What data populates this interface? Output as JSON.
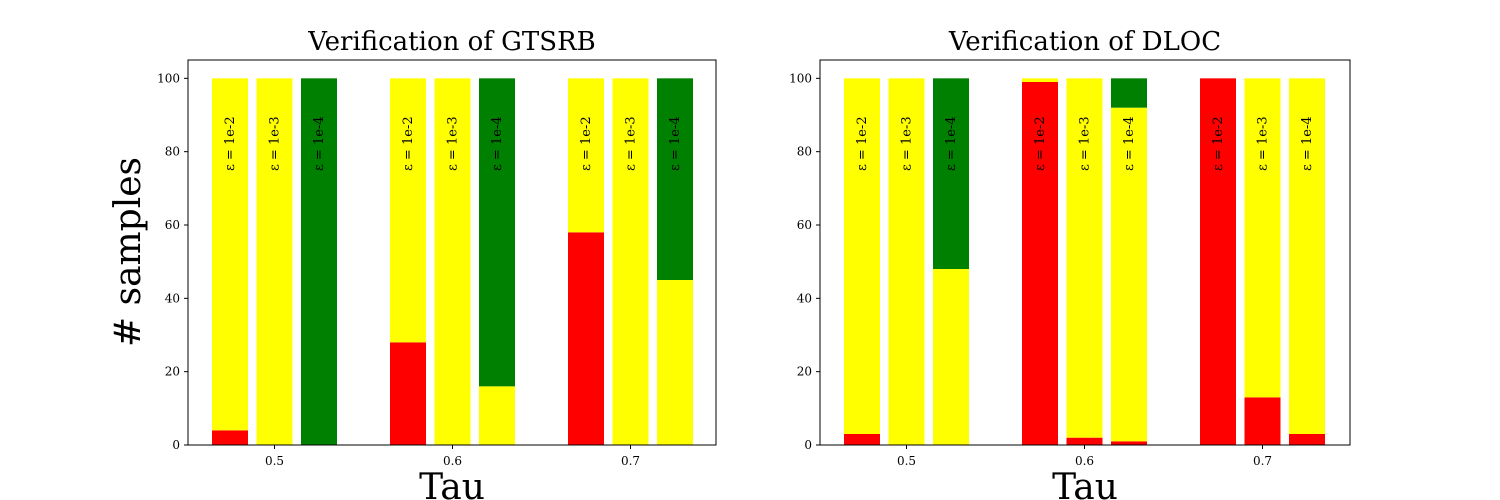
{
  "figure": {
    "ylabel": "# samples"
  },
  "chart_data": [
    {
      "type": "bar",
      "stacked": true,
      "title": "Verification of GTSRB",
      "xlabel": "Tau",
      "ylabel": "# samples",
      "ylim": [
        0,
        105
      ],
      "yticks": [
        0,
        20,
        40,
        60,
        80,
        100
      ],
      "groups": [
        "0.5",
        "0.6",
        "0.7"
      ],
      "bar_labels": [
        "ε = 1e-2",
        "ε = 1e-3",
        "ε = 1e-4"
      ],
      "series_colors": {
        "red": "#ff0000",
        "yellow": "#ffff00",
        "green": "#008000"
      },
      "bars": [
        {
          "group": "0.5",
          "label": "ε = 1e-2",
          "red": 4,
          "yellow": 96,
          "green": 0
        },
        {
          "group": "0.5",
          "label": "ε = 1e-3",
          "red": 0,
          "yellow": 100,
          "green": 0
        },
        {
          "group": "0.5",
          "label": "ε = 1e-4",
          "red": 0,
          "yellow": 0,
          "green": 100
        },
        {
          "group": "0.6",
          "label": "ε = 1e-2",
          "red": 28,
          "yellow": 72,
          "green": 0
        },
        {
          "group": "0.6",
          "label": "ε = 1e-3",
          "red": 0,
          "yellow": 100,
          "green": 0
        },
        {
          "group": "0.6",
          "label": "ε = 1e-4",
          "red": 0,
          "yellow": 16,
          "green": 84
        },
        {
          "group": "0.7",
          "label": "ε = 1e-2",
          "red": 58,
          "yellow": 42,
          "green": 0
        },
        {
          "group": "0.7",
          "label": "ε = 1e-3",
          "red": 0,
          "yellow": 100,
          "green": 0
        },
        {
          "group": "0.7",
          "label": "ε = 1e-4",
          "red": 0,
          "yellow": 45,
          "green": 55
        }
      ]
    },
    {
      "type": "bar",
      "stacked": true,
      "title": "Verification of DLOC",
      "xlabel": "Tau",
      "ylabel": "",
      "ylim": [
        0,
        105
      ],
      "yticks": [
        0,
        20,
        40,
        60,
        80,
        100
      ],
      "groups": [
        "0.5",
        "0.6",
        "0.7"
      ],
      "bar_labels": [
        "ε = 1e-2",
        "ε = 1e-3",
        "ε = 1e-4"
      ],
      "series_colors": {
        "red": "#ff0000",
        "yellow": "#ffff00",
        "green": "#008000"
      },
      "bars": [
        {
          "group": "0.5",
          "label": "ε = 1e-2",
          "red": 3,
          "yellow": 97,
          "green": 0
        },
        {
          "group": "0.5",
          "label": "ε = 1e-3",
          "red": 0,
          "yellow": 100,
          "green": 0
        },
        {
          "group": "0.5",
          "label": "ε = 1e-4",
          "red": 0,
          "yellow": 48,
          "green": 52
        },
        {
          "group": "0.6",
          "label": "ε = 1e-2",
          "red": 99,
          "yellow": 1,
          "green": 0
        },
        {
          "group": "0.6",
          "label": "ε = 1e-3",
          "red": 2,
          "yellow": 98,
          "green": 0
        },
        {
          "group": "0.6",
          "label": "ε = 1e-4",
          "red": 1,
          "yellow": 91,
          "green": 8
        },
        {
          "group": "0.7",
          "label": "ε = 1e-2",
          "red": 100,
          "yellow": 0,
          "green": 0
        },
        {
          "group": "0.7",
          "label": "ε = 1e-3",
          "red": 13,
          "yellow": 87,
          "green": 0
        },
        {
          "group": "0.7",
          "label": "ε = 1e-4",
          "red": 3,
          "yellow": 97,
          "green": 0
        }
      ]
    }
  ]
}
